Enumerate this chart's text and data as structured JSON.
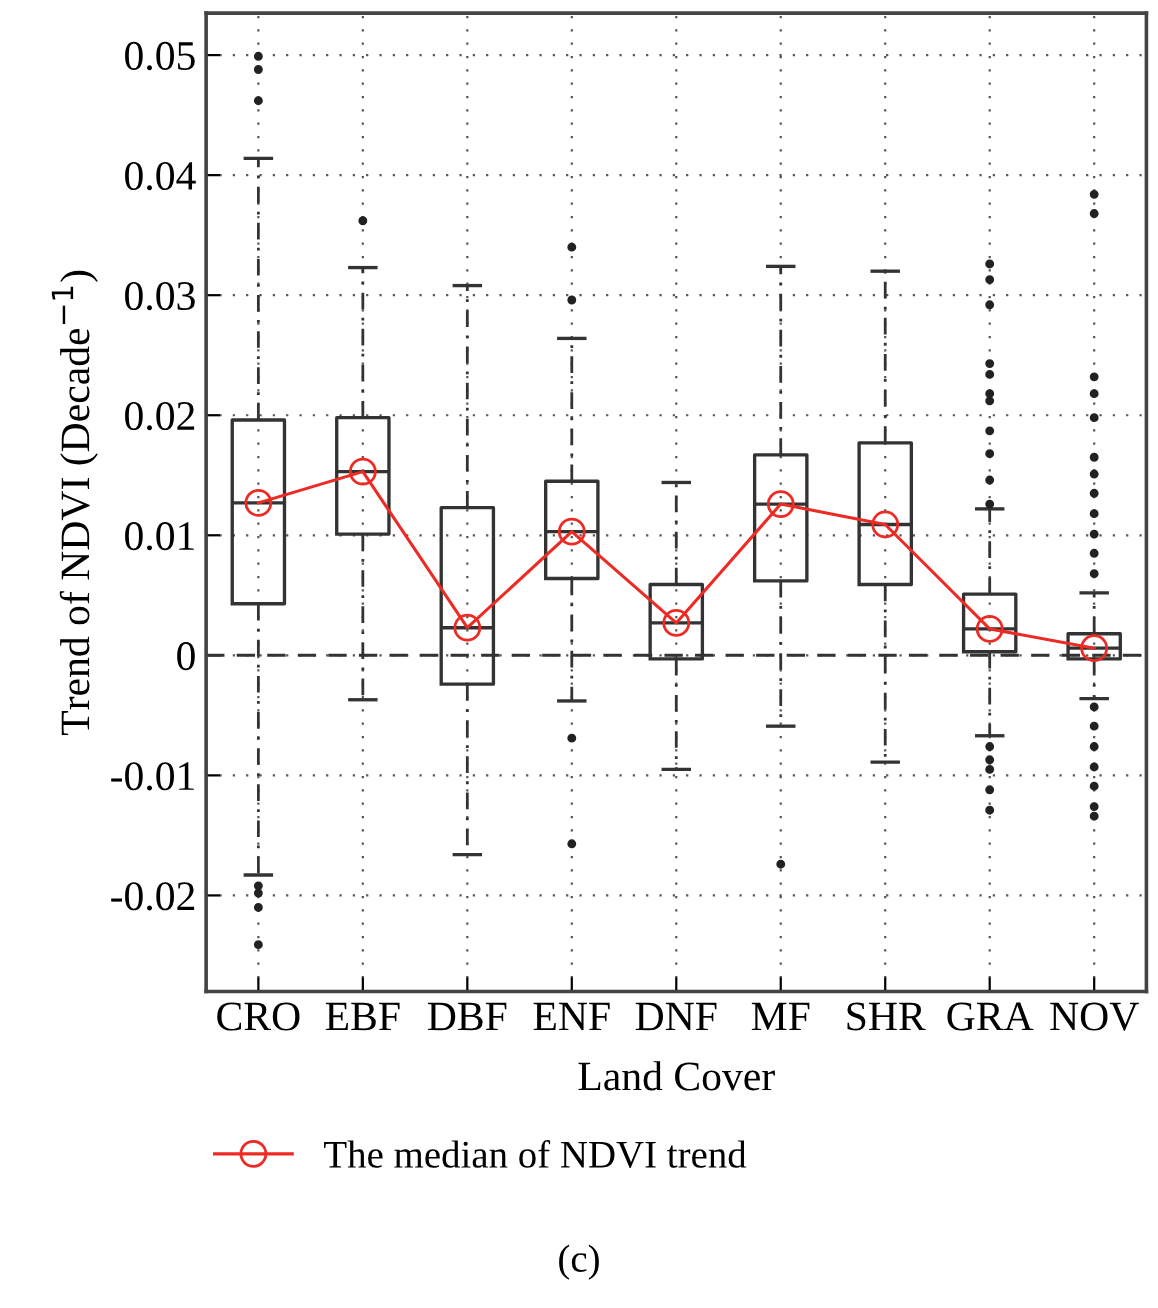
{
  "chart_data": {
    "type": "box",
    "xlabel": "Land Cover",
    "ylabel": "Trend of NDVI (Decade$^{−1}$)",
    "categories": [
      "CRO",
      "EBF",
      "DBF",
      "ENF",
      "DNF",
      "MF",
      "SHR",
      "GRA",
      "NOV"
    ],
    "boxes": [
      {
        "low": -0.0183,
        "q1": 0.0043,
        "median": 0.0127,
        "q3": 0.0196,
        "high": 0.0414,
        "outliers": [
          0.0499,
          0.0488,
          0.0462,
          -0.0192,
          -0.0198,
          -0.021,
          -0.0241
        ]
      },
      {
        "low": -0.0037,
        "q1": 0.0101,
        "median": 0.0153,
        "q3": 0.0198,
        "high": 0.0323,
        "outliers": [
          0.0362
        ]
      },
      {
        "low": -0.0166,
        "q1": -0.0024,
        "median": 0.0023,
        "q3": 0.0123,
        "high": 0.0308
      },
      {
        "low": -0.0038,
        "q1": 0.0064,
        "median": 0.0103,
        "q3": 0.0145,
        "high": 0.0264,
        "outliers": [
          0.034,
          0.0296,
          -0.0069,
          -0.0157
        ]
      },
      {
        "low": -0.0095,
        "q1": -0.0003,
        "median": 0.0027,
        "q3": 0.0059,
        "high": 0.0144
      },
      {
        "low": -0.0059,
        "q1": 0.0062,
        "median": 0.0126,
        "q3": 0.0167,
        "high": 0.0324,
        "outliers": [
          -0.0174
        ]
      },
      {
        "low": -0.0089,
        "q1": 0.0059,
        "median": 0.0109,
        "q3": 0.0177,
        "high": 0.032
      },
      {
        "low": -0.0067,
        "q1": 0.0003,
        "median": 0.0022,
        "q3": 0.0051,
        "high": 0.0122,
        "outliers": [
          0.0326,
          0.0313,
          0.0292,
          0.0243,
          0.0234,
          0.0218,
          0.0212,
          0.0187,
          0.0168,
          0.0146,
          0.0126,
          -0.0076,
          -0.0087,
          -0.0095,
          -0.0112,
          -0.0129
        ]
      },
      {
        "low": -0.0036,
        "q1": -0.0003,
        "median": 0.0006,
        "q3": 0.0018,
        "high": 0.0052,
        "outliers": [
          0.0384,
          0.0368,
          0.0232,
          0.0218,
          0.0198,
          0.0165,
          0.0151,
          0.0135,
          0.0118,
          0.0101,
          0.0085,
          0.0068,
          -0.0043,
          -0.0059,
          -0.0076,
          -0.0093,
          -0.0109,
          -0.0126,
          -0.0134
        ]
      }
    ],
    "series": [
      {
        "type": "line",
        "name": "The median of NDVI trend",
        "color": "#ee2a24",
        "marker": "circle",
        "values": [
          0.0127,
          0.0153,
          0.0023,
          0.0103,
          0.0027,
          0.0126,
          0.0109,
          0.0022,
          0.0006
        ]
      }
    ],
    "ylim": [
      -0.028,
      0.0535
    ],
    "yticks": [
      -0.02,
      -0.01,
      0,
      0.01,
      0.02,
      0.03,
      0.04,
      0.05
    ],
    "ref_lines": [
      {
        "axis": "y",
        "value": 0,
        "line_style": "dashed"
      }
    ],
    "grid": true,
    "legend": "bottom",
    "annotations": [
      "(c)"
    ]
  }
}
